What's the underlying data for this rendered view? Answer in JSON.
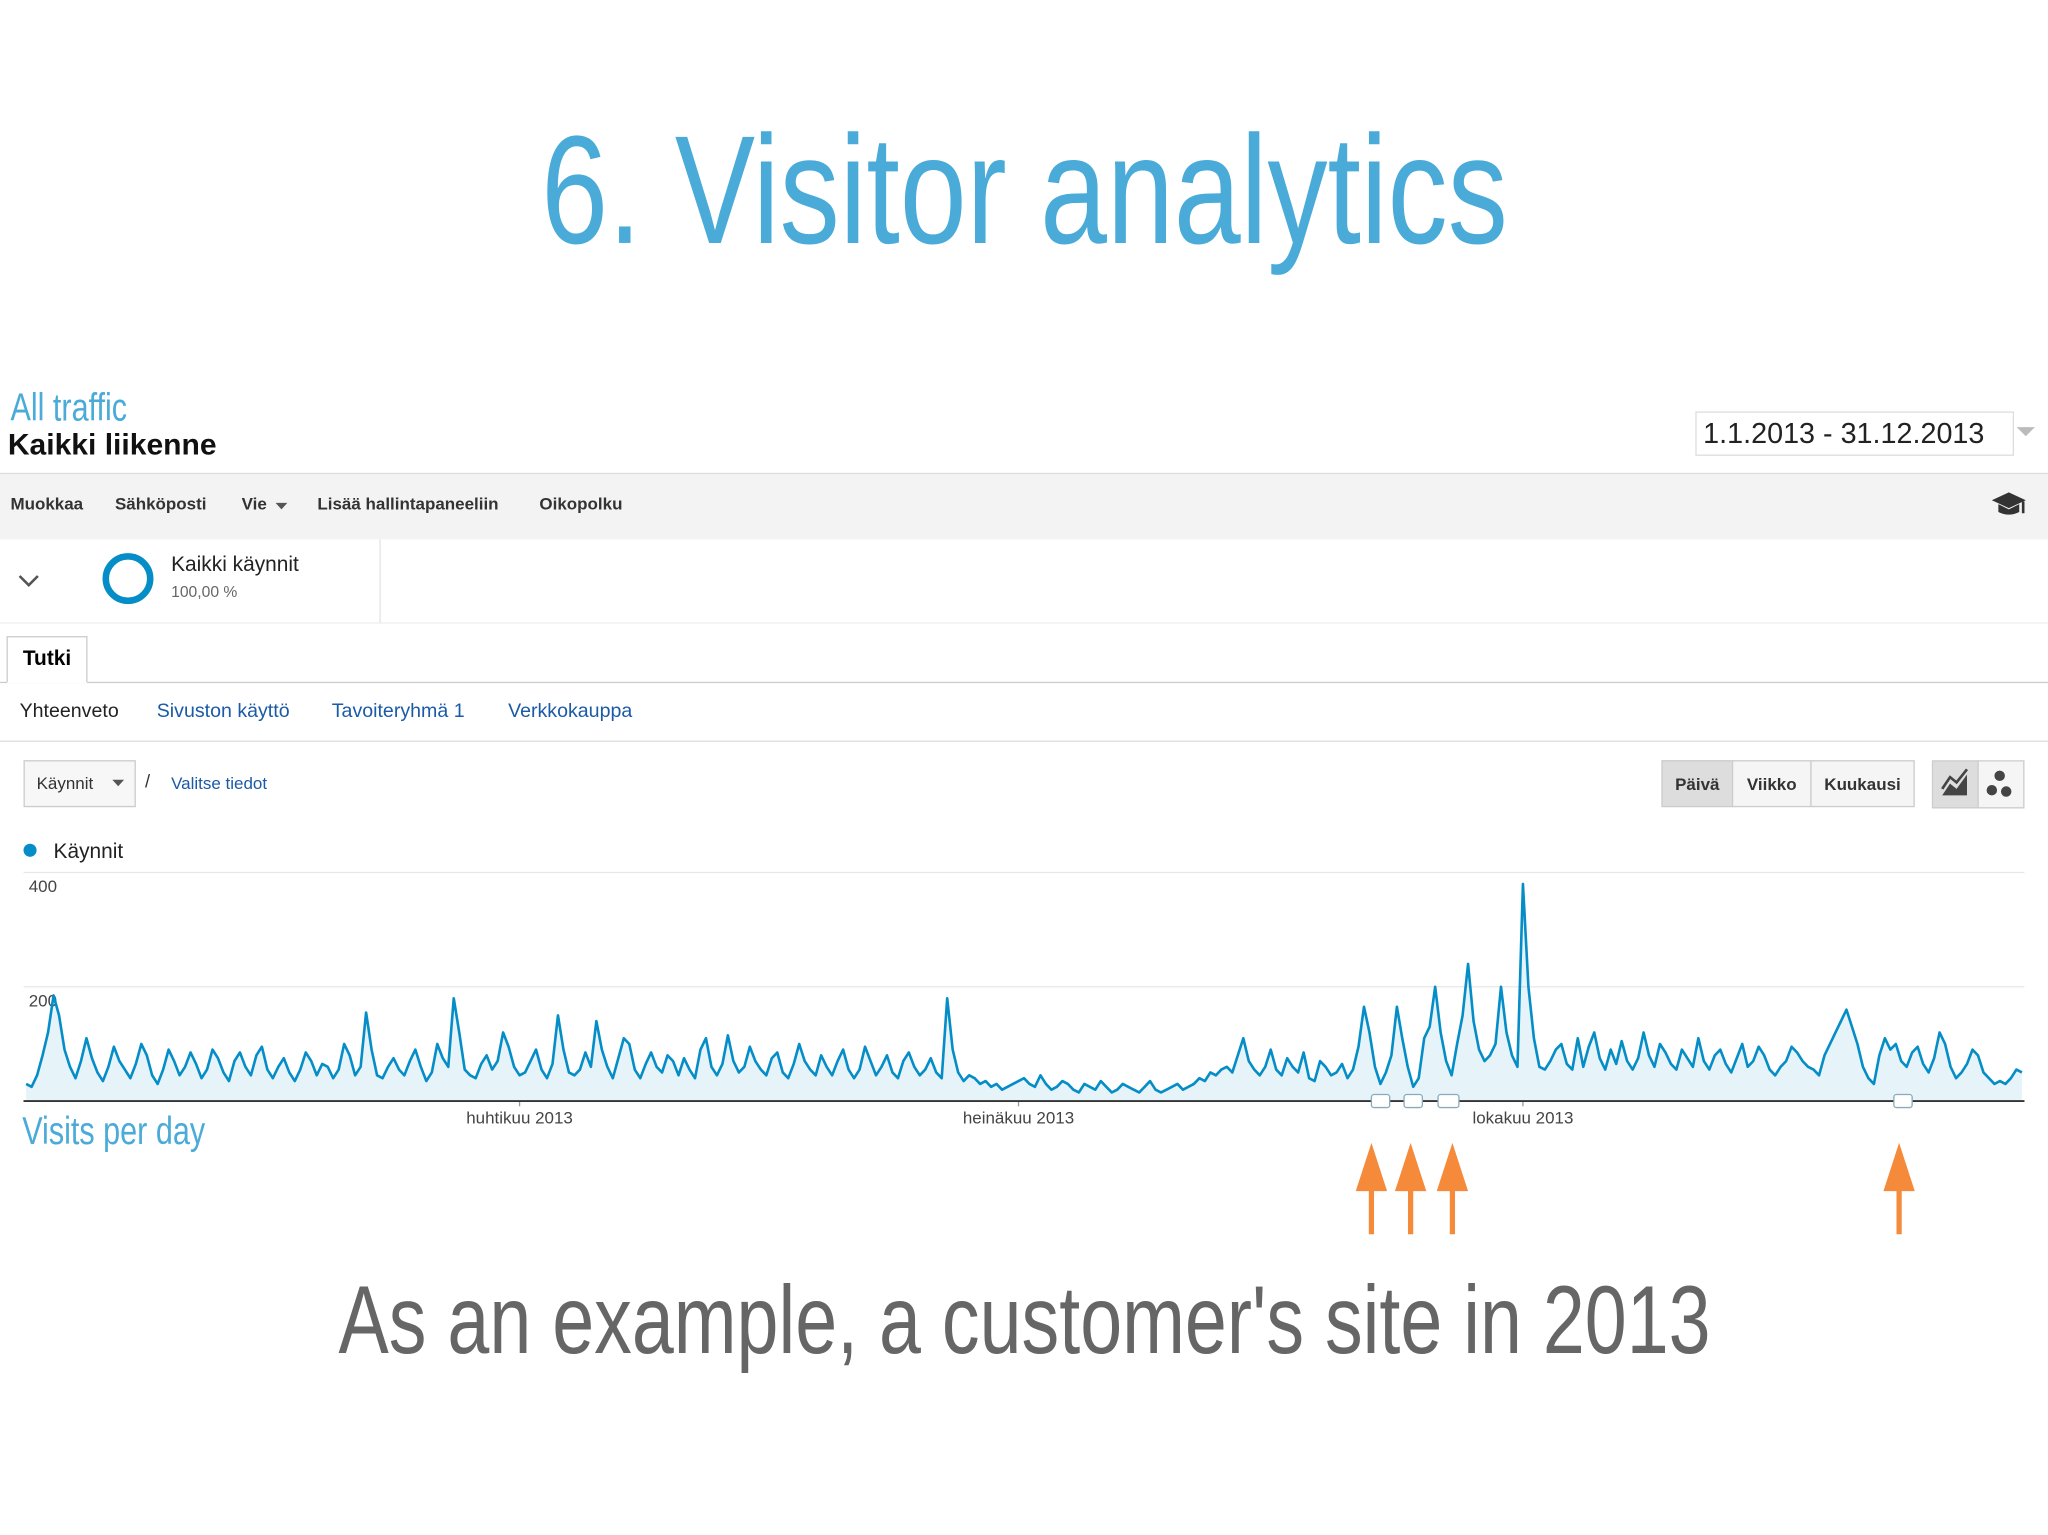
{
  "title": "6. Visitor analytics",
  "caption": "As an example, a customer's site in 2013",
  "annotations": {
    "all_traffic": "All traffic",
    "visits_per_day": "Visits per day"
  },
  "report": {
    "title": "Kaikki liikenne",
    "date_range": "1.1.2013 - 31.12.2013",
    "toolbar": [
      "Muokkaa",
      "Sähköposti",
      "Vie",
      "Lisää hallintapaneeliin",
      "Oikopolku"
    ],
    "segment": {
      "name": "Kaikki käynnit",
      "share": "100,00 %"
    },
    "tab": "Tutki",
    "subtabs": [
      "Yhteenveto",
      "Sivuston käyttö",
      "Tavoiteryhmä 1",
      "Verkkokauppa"
    ],
    "metric": "Käynnit",
    "separator": "/",
    "select": "Valitse tiedot",
    "granularity": [
      "Päivä",
      "Viikko",
      "Kuukausi"
    ]
  },
  "chart_data": {
    "type": "line",
    "series": [
      {
        "name": "Käynnit",
        "color": "#058dc7",
        "values": [
          30,
          25,
          45,
          80,
          120,
          185,
          150,
          90,
          60,
          40,
          70,
          110,
          75,
          50,
          35,
          60,
          95,
          70,
          55,
          40,
          65,
          100,
          80,
          45,
          30,
          55,
          90,
          70,
          45,
          60,
          85,
          65,
          40,
          55,
          90,
          75,
          50,
          35,
          70,
          85,
          60,
          45,
          80,
          95,
          55,
          40,
          60,
          75,
          50,
          35,
          55,
          85,
          70,
          45,
          65,
          60,
          40,
          55,
          100,
          80,
          45,
          60,
          155,
          90,
          45,
          40,
          60,
          75,
          55,
          45,
          70,
          90,
          60,
          35,
          50,
          100,
          75,
          60,
          180,
          120,
          55,
          45,
          40,
          65,
          80,
          55,
          70,
          120,
          95,
          60,
          45,
          50,
          70,
          90,
          55,
          40,
          65,
          150,
          90,
          50,
          45,
          55,
          85,
          60,
          140,
          90,
          60,
          40,
          75,
          110,
          100,
          55,
          40,
          65,
          85,
          60,
          50,
          80,
          70,
          45,
          75,
          55,
          40,
          90,
          110,
          60,
          45,
          65,
          115,
          70,
          50,
          60,
          95,
          70,
          55,
          45,
          75,
          85,
          50,
          40,
          65,
          100,
          70,
          55,
          45,
          80,
          60,
          45,
          70,
          90,
          55,
          40,
          55,
          95,
          70,
          45,
          60,
          80,
          50,
          40,
          70,
          85,
          60,
          45,
          55,
          75,
          50,
          40,
          180,
          90,
          50,
          35,
          45,
          40,
          30,
          35,
          25,
          30,
          20,
          25,
          30,
          35,
          40,
          30,
          25,
          45,
          30,
          20,
          25,
          35,
          30,
          20,
          15,
          30,
          25,
          20,
          35,
          25,
          15,
          20,
          30,
          25,
          20,
          15,
          25,
          35,
          20,
          15,
          20,
          25,
          30,
          20,
          25,
          30,
          40,
          35,
          50,
          45,
          55,
          60,
          50,
          80,
          110,
          70,
          55,
          45,
          60,
          90,
          55,
          45,
          75,
          60,
          50,
          85,
          40,
          35,
          70,
          60,
          45,
          50,
          65,
          40,
          55,
          95,
          165,
          120,
          60,
          30,
          50,
          80,
          165,
          110,
          60,
          25,
          40,
          110,
          130,
          200,
          120,
          70,
          45,
          100,
          150,
          240,
          140,
          90,
          70,
          80,
          100,
          200,
          120,
          80,
          60,
          380,
          200,
          110,
          60,
          55,
          70,
          90,
          100,
          65,
          55,
          110,
          60,
          95,
          120,
          75,
          55,
          90,
          65,
          105,
          70,
          55,
          75,
          120,
          80,
          60,
          100,
          85,
          65,
          55,
          90,
          75,
          60,
          110,
          70,
          55,
          80,
          90,
          65,
          50,
          75,
          100,
          60,
          70,
          95,
          80,
          55,
          45,
          60,
          70,
          95,
          85,
          70,
          60,
          55,
          45,
          80,
          100,
          120,
          140,
          160,
          130,
          100,
          60,
          40,
          30,
          80,
          110,
          90,
          100,
          70,
          60,
          85,
          95,
          65,
          50,
          75,
          120,
          100,
          60,
          40,
          50,
          65,
          90,
          80,
          50,
          40,
          30,
          35,
          30,
          40,
          55,
          50
        ]
      }
    ],
    "xlim": [
      0,
      364
    ],
    "xticks": [
      {
        "value": 90,
        "label": "huhtikuu 2013"
      },
      {
        "value": 181,
        "label": "heinäkuu 2013"
      },
      {
        "value": 273,
        "label": "lokakuu 2013"
      }
    ],
    "ylim": [
      0,
      400
    ],
    "yticks": [
      200,
      400
    ],
    "grid": true
  }
}
